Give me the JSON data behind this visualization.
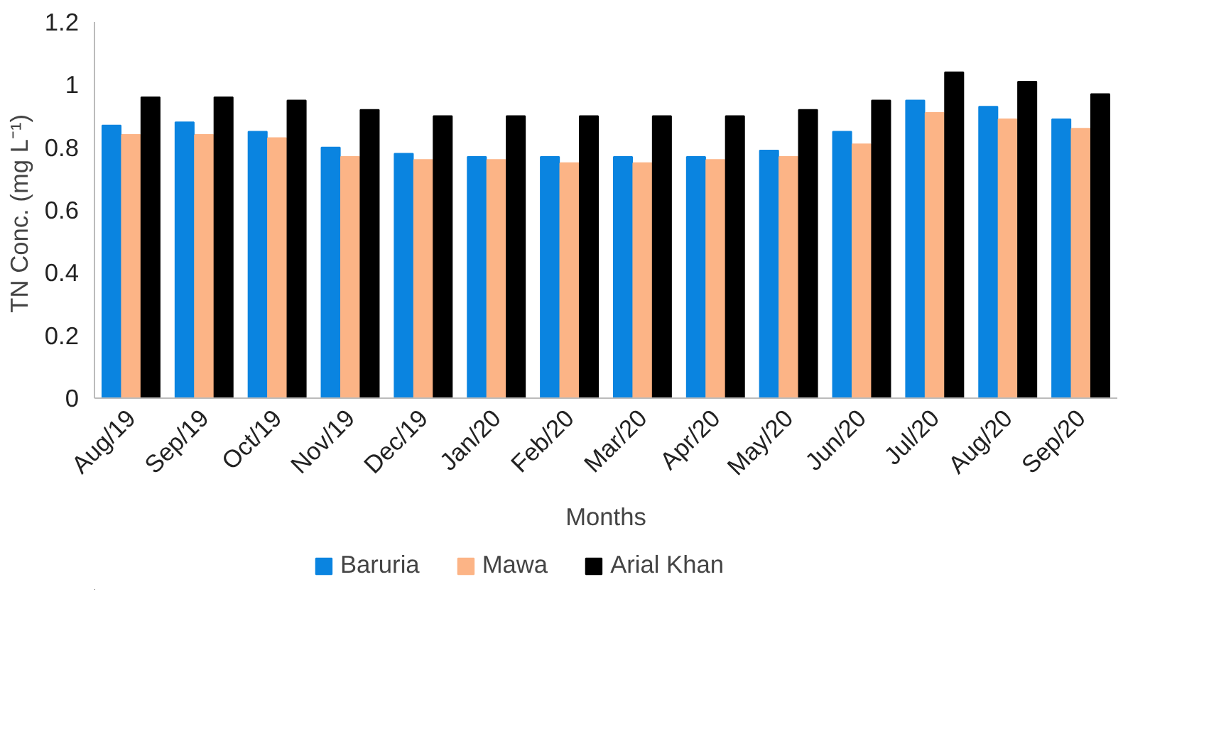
{
  "chart_data": {
    "type": "bar",
    "xlabel": "Months",
    "ylabel": "TN Conc.  (mg L⁻¹)",
    "categories": [
      "Aug/19",
      "Sep/19",
      "Oct/19",
      "Nov/19",
      "Dec/19",
      "Jan/20",
      "Feb/20",
      "Mar/20",
      "Apr/20",
      "May/20",
      "Jun/20",
      "Jul/20",
      "Aug/20",
      "Sep/20"
    ],
    "series": [
      {
        "name": "Baruria",
        "color": "#0a84e0",
        "values": [
          0.87,
          0.88,
          0.85,
          0.8,
          0.78,
          0.77,
          0.77,
          0.77,
          0.77,
          0.79,
          0.85,
          0.95,
          0.93,
          0.89
        ]
      },
      {
        "name": "Mawa",
        "color": "#fcb486",
        "values": [
          0.84,
          0.84,
          0.83,
          0.77,
          0.76,
          0.76,
          0.75,
          0.75,
          0.76,
          0.77,
          0.81,
          0.91,
          0.89,
          0.86
        ]
      },
      {
        "name": "Arial Khan",
        "color": "#000000",
        "values": [
          0.96,
          0.96,
          0.95,
          0.92,
          0.9,
          0.9,
          0.9,
          0.9,
          0.9,
          0.92,
          0.95,
          1.04,
          1.01,
          0.97
        ]
      }
    ],
    "ylim": [
      0,
      1.2
    ],
    "yticks": [
      0,
      0.2,
      0.4,
      0.6,
      0.8,
      1,
      1.2
    ],
    "grid": false,
    "legend": "bottom"
  }
}
